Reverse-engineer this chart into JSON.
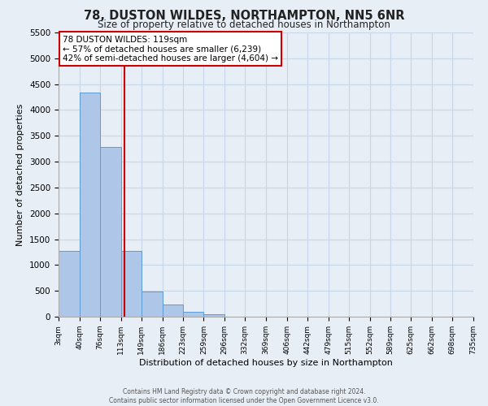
{
  "title": "78, DUSTON WILDES, NORTHAMPTON, NN5 6NR",
  "subtitle": "Size of property relative to detached houses in Northampton",
  "xlabel": "Distribution of detached houses by size in Northampton",
  "ylabel": "Number of detached properties",
  "footer_lines": [
    "Contains HM Land Registry data © Crown copyright and database right 2024.",
    "Contains public sector information licensed under the Open Government Licence v3.0."
  ],
  "bin_edges": [
    3,
    40,
    76,
    113,
    149,
    186,
    223,
    259,
    296,
    332,
    369,
    406,
    442,
    479,
    515,
    552,
    589,
    625,
    662,
    698,
    735
  ],
  "bin_heights": [
    1270,
    4340,
    3290,
    1280,
    480,
    230,
    90,
    50,
    0,
    0,
    0,
    0,
    0,
    0,
    0,
    0,
    0,
    0,
    0,
    0
  ],
  "bar_color": "#aec6e8",
  "bar_edge_color": "#5b9bd5",
  "grid_color": "#c8d4e8",
  "bg_color": "#e8eef6",
  "vline_x": 119,
  "vline_color": "#cc0000",
  "annotation_text": "78 DUSTON WILDES: 119sqm\n← 57% of detached houses are smaller (6,239)\n42% of semi-detached houses are larger (4,604) →",
  "annotation_box_color": "#ffffff",
  "annotation_box_edge": "#cc0000",
  "ylim": [
    0,
    5500
  ],
  "yticks": [
    0,
    500,
    1000,
    1500,
    2000,
    2500,
    3000,
    3500,
    4000,
    4500,
    5000,
    5500
  ],
  "tick_labels": [
    "3sqm",
    "40sqm",
    "76sqm",
    "113sqm",
    "149sqm",
    "186sqm",
    "223sqm",
    "259sqm",
    "296sqm",
    "332sqm",
    "369sqm",
    "406sqm",
    "442sqm",
    "479sqm",
    "515sqm",
    "552sqm",
    "589sqm",
    "625sqm",
    "662sqm",
    "698sqm",
    "735sqm"
  ]
}
